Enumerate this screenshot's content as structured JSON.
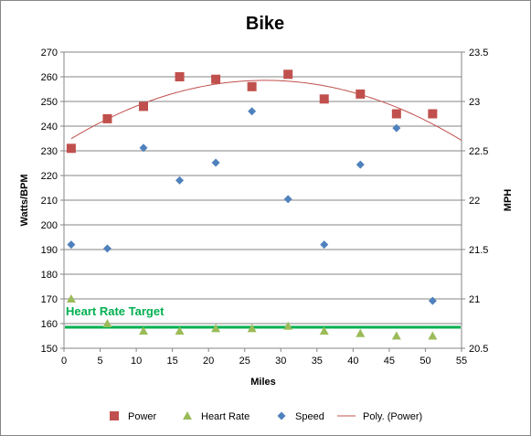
{
  "chart_data": {
    "type": "scatter",
    "title": "Bike",
    "xlabel": "Miles",
    "ylabel": "Watts/BPM",
    "y2label": "MPH",
    "xlim": [
      0,
      55
    ],
    "ylim": [
      150,
      270
    ],
    "y2lim": [
      20.5,
      23.5
    ],
    "xticks": [
      0,
      5,
      10,
      15,
      20,
      25,
      30,
      35,
      40,
      45,
      50,
      55
    ],
    "yticks": [
      150,
      160,
      170,
      180,
      190,
      200,
      210,
      220,
      230,
      240,
      250,
      260,
      270
    ],
    "y2ticks": [
      20.5,
      21,
      21.5,
      22,
      22.5,
      23,
      23.5
    ],
    "grid": true,
    "legend_position": "bottom",
    "series": [
      {
        "name": "Power",
        "axis": "left",
        "marker": "square",
        "color": "#C0504D",
        "x": [
          1,
          6,
          11,
          16,
          21,
          26,
          31,
          36,
          41,
          46,
          51
        ],
        "y": [
          231,
          243,
          248,
          260,
          259,
          256,
          261,
          251,
          253,
          245,
          245
        ]
      },
      {
        "name": "Heart Rate",
        "axis": "left",
        "marker": "triangle",
        "color": "#9BBB59",
        "x": [
          1,
          6,
          11,
          16,
          21,
          26,
          31,
          36,
          41,
          46,
          51
        ],
        "y": [
          170,
          160,
          157,
          157,
          158,
          158,
          159,
          157,
          156,
          155,
          155
        ]
      },
      {
        "name": "Speed",
        "axis": "right",
        "marker": "diamond",
        "color": "#4F81BD",
        "x": [
          1,
          6,
          11,
          16,
          21,
          26,
          31,
          36,
          41,
          46,
          51
        ],
        "y": [
          21.55,
          21.51,
          22.53,
          22.2,
          22.38,
          22.9,
          22.01,
          21.55,
          22.36,
          22.73,
          20.98
        ]
      },
      {
        "name": "Poly. (Power)",
        "axis": "left",
        "line": "trendline",
        "color": "#C0504D",
        "degree": 2,
        "coefficients": [
          233.1,
          1.83,
          -0.0329
        ]
      }
    ],
    "annotations": [
      {
        "text": "Heart Rate Target",
        "color": "#00B050",
        "y": 158.5
      }
    ]
  }
}
